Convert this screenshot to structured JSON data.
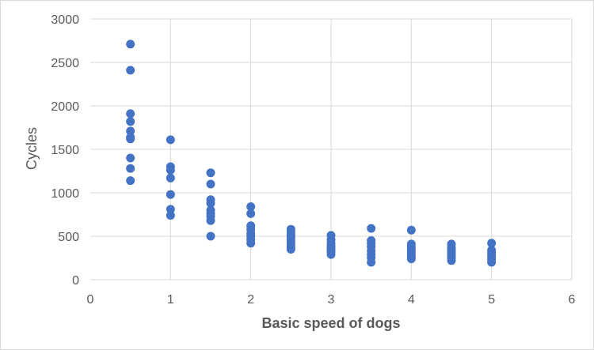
{
  "chart_data": {
    "type": "scatter",
    "title": "",
    "xlabel": "Basic speed of dogs",
    "ylabel": "Cycles",
    "xlim": [
      0,
      6
    ],
    "ylim": [
      0,
      3000
    ],
    "x_ticks": [
      "0",
      "1",
      "2",
      "3",
      "4",
      "5",
      "6"
    ],
    "y_ticks": [
      "0",
      "500",
      "1000",
      "1500",
      "2000",
      "2500",
      "3000"
    ],
    "grid": true,
    "legend": "none",
    "marker_color": "#4472C4",
    "series": [
      {
        "points": [
          [
            0.5,
            2710
          ],
          [
            0.5,
            2410
          ],
          [
            0.5,
            1910
          ],
          [
            0.5,
            1820
          ],
          [
            0.5,
            1710
          ],
          [
            0.5,
            1640
          ],
          [
            0.5,
            1620
          ],
          [
            0.5,
            1400
          ],
          [
            0.5,
            1280
          ],
          [
            0.5,
            1140
          ],
          [
            1,
            1610
          ],
          [
            1,
            1300
          ],
          [
            1,
            1260
          ],
          [
            1,
            1170
          ],
          [
            1,
            980
          ],
          [
            1,
            810
          ],
          [
            1,
            740
          ],
          [
            1.5,
            1230
          ],
          [
            1.5,
            1100
          ],
          [
            1.5,
            920
          ],
          [
            1.5,
            880
          ],
          [
            1.5,
            800
          ],
          [
            1.5,
            760
          ],
          [
            1.5,
            730
          ],
          [
            1.5,
            680
          ],
          [
            1.5,
            500
          ],
          [
            2,
            840
          ],
          [
            2,
            760
          ],
          [
            2,
            620
          ],
          [
            2,
            580
          ],
          [
            2,
            530
          ],
          [
            2,
            500
          ],
          [
            2,
            460
          ],
          [
            2,
            420
          ],
          [
            2.5,
            580
          ],
          [
            2.5,
            550
          ],
          [
            2.5,
            520
          ],
          [
            2.5,
            490
          ],
          [
            2.5,
            460
          ],
          [
            2.5,
            430
          ],
          [
            2.5,
            400
          ],
          [
            2.5,
            370
          ],
          [
            2.5,
            350
          ],
          [
            3,
            510
          ],
          [
            3,
            460
          ],
          [
            3,
            420
          ],
          [
            3,
            390
          ],
          [
            3,
            360
          ],
          [
            3,
            340
          ],
          [
            3,
            320
          ],
          [
            3,
            290
          ],
          [
            3.5,
            590
          ],
          [
            3.5,
            450
          ],
          [
            3.5,
            420
          ],
          [
            3.5,
            380
          ],
          [
            3.5,
            330
          ],
          [
            3.5,
            290
          ],
          [
            3.5,
            250
          ],
          [
            3.5,
            200
          ],
          [
            4,
            570
          ],
          [
            4,
            410
          ],
          [
            4,
            380
          ],
          [
            4,
            350
          ],
          [
            4,
            320
          ],
          [
            4,
            290
          ],
          [
            4,
            260
          ],
          [
            4,
            240
          ],
          [
            4.5,
            410
          ],
          [
            4.5,
            370
          ],
          [
            4.5,
            340
          ],
          [
            4.5,
            310
          ],
          [
            4.5,
            280
          ],
          [
            4.5,
            250
          ],
          [
            4.5,
            220
          ],
          [
            5,
            420
          ],
          [
            5,
            340
          ],
          [
            5,
            310
          ],
          [
            5,
            290
          ],
          [
            5,
            260
          ],
          [
            5,
            230
          ],
          [
            5,
            200
          ]
        ]
      }
    ]
  }
}
